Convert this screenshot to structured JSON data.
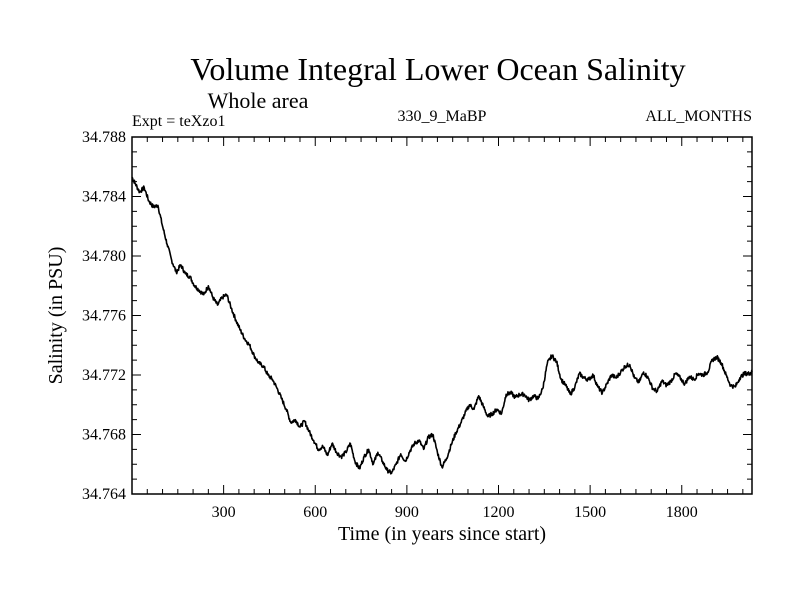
{
  "chart_data": {
    "type": "line",
    "title": "Volume Integral Lower Ocean Salinity",
    "subtitle": "Whole area",
    "annotations": {
      "left": "Expt = teXzo1",
      "center": "330_9_MaBP",
      "right": "ALL_MONTHS"
    },
    "xlabel": "Time (in years since start)",
    "ylabel": "Salinity (in PSU)",
    "xlim": [
      0,
      2030
    ],
    "ylim": [
      34.764,
      34.788
    ],
    "x_ticks": [
      300,
      600,
      900,
      1200,
      1500,
      1800
    ],
    "x_tick_labels": [
      "300",
      "600",
      "900",
      "1200",
      "1500",
      "1800"
    ],
    "y_ticks": [
      34.764,
      34.768,
      34.772,
      34.776,
      34.78,
      34.784,
      34.788
    ],
    "y_tick_labels": [
      "34.764",
      "34.768",
      "34.772",
      "34.776",
      "34.780",
      "34.784",
      "34.788"
    ],
    "grid": false,
    "series": [
      {
        "name": "salinity",
        "color": "#000000",
        "x": [
          0,
          10,
          25,
          40,
          55,
          70,
          85,
          100,
          115,
          130,
          145,
          160,
          175,
          190,
          205,
          220,
          235,
          250,
          265,
          280,
          295,
          310,
          325,
          340,
          355,
          370,
          385,
          400,
          415,
          430,
          445,
          460,
          475,
          490,
          505,
          520,
          535,
          550,
          565,
          580,
          595,
          610,
          625,
          640,
          655,
          670,
          685,
          700,
          715,
          730,
          745,
          760,
          775,
          790,
          805,
          820,
          835,
          850,
          865,
          880,
          895,
          910,
          925,
          940,
          955,
          970,
          985,
          1000,
          1015,
          1030,
          1045,
          1060,
          1075,
          1090,
          1105,
          1120,
          1135,
          1150,
          1165,
          1180,
          1195,
          1210,
          1225,
          1240,
          1255,
          1270,
          1285,
          1300,
          1315,
          1330,
          1345,
          1360,
          1375,
          1390,
          1405,
          1420,
          1435,
          1450,
          1465,
          1480,
          1495,
          1510,
          1525,
          1540,
          1555,
          1570,
          1585,
          1600,
          1615,
          1630,
          1645,
          1660,
          1675,
          1690,
          1705,
          1720,
          1735,
          1750,
          1765,
          1780,
          1795,
          1810,
          1825,
          1840,
          1855,
          1870,
          1885,
          1900,
          1915,
          1930,
          1945,
          1960,
          1975,
          1990,
          2005,
          2020,
          2030
        ],
        "y": [
          34.7853,
          34.7849,
          34.7843,
          34.7846,
          34.7837,
          34.7833,
          34.7834,
          34.782,
          34.7808,
          34.7797,
          34.7789,
          34.7794,
          34.7788,
          34.7786,
          34.778,
          34.7777,
          34.7774,
          34.778,
          34.7772,
          34.7767,
          34.7772,
          34.7774,
          34.7765,
          34.7757,
          34.775,
          34.7744,
          34.774,
          34.7733,
          34.7728,
          34.7726,
          34.772,
          34.7717,
          34.7711,
          34.7704,
          34.7697,
          34.7688,
          34.769,
          34.7685,
          34.7689,
          34.7682,
          34.7676,
          34.767,
          34.7672,
          34.7666,
          34.7674,
          34.7668,
          34.7665,
          34.7668,
          34.7674,
          34.7662,
          34.7657,
          34.7665,
          34.767,
          34.766,
          34.7668,
          34.7662,
          34.7656,
          34.7654,
          34.766,
          34.7667,
          34.7662,
          34.7669,
          34.7674,
          34.7676,
          34.767,
          34.7678,
          34.768,
          34.7668,
          34.7658,
          34.7664,
          34.7673,
          34.7681,
          34.7687,
          34.7694,
          34.77,
          34.7697,
          34.7706,
          34.7699,
          34.7692,
          34.7694,
          34.7697,
          34.7694,
          34.7707,
          34.7708,
          34.7705,
          34.7707,
          34.7707,
          34.7703,
          34.7706,
          34.7704,
          34.7711,
          34.7728,
          34.7733,
          34.7729,
          34.7717,
          34.7713,
          34.7707,
          34.7712,
          34.7721,
          34.7718,
          34.7717,
          34.772,
          34.7712,
          34.7708,
          34.7714,
          34.772,
          34.7718,
          34.7722,
          34.7726,
          34.7727,
          34.7718,
          34.7715,
          34.7722,
          34.7718,
          34.7711,
          34.7709,
          34.7716,
          34.7713,
          34.7716,
          34.7721,
          34.7718,
          34.7714,
          34.7719,
          34.7717,
          34.7721,
          34.772,
          34.7722,
          34.773,
          34.7732,
          34.7728,
          34.772,
          34.7713,
          34.7712,
          34.7718,
          34.7721,
          34.7721,
          34.7722
        ]
      }
    ]
  }
}
